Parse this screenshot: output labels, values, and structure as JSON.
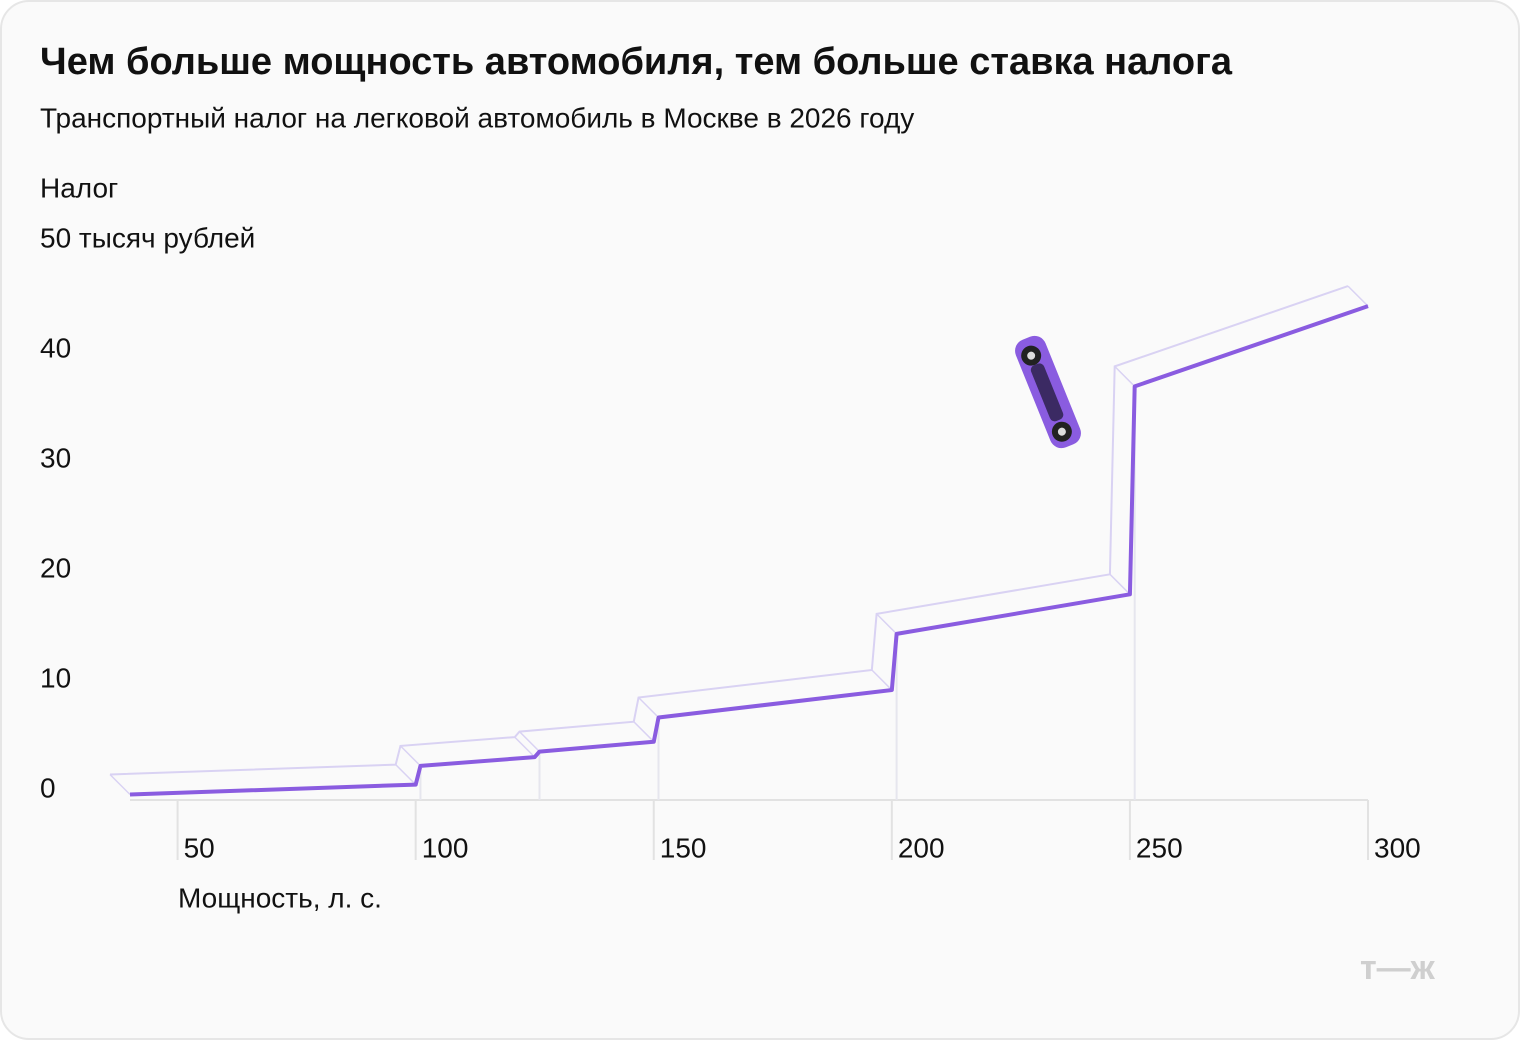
{
  "chart_data": {
    "type": "line",
    "title": "Чем больше мощность автомобиля, тем больше ставка налога",
    "subtitle": "Транспортный налог на легковой автомобиль в Москве в 2026 году",
    "y_label": "Налог",
    "y_unit": "50 тысяч рублей",
    "x_label": "Мощность, л. с.",
    "logo": "т—ж",
    "x": [
      40,
      100,
      101,
      125,
      126,
      150,
      151,
      200,
      201,
      250,
      251,
      300
    ],
    "series": [
      {
        "color": "#8a5ce0",
        "values": [
          0.5,
          1.4,
          3.1,
          3.9,
          4.4,
          5.3,
          7.5,
          10,
          15.1,
          18.7,
          37.6,
          44.9
        ]
      }
    ],
    "xlim": [
      40,
      300
    ],
    "xticks": [
      50,
      100,
      150,
      200,
      250,
      300
    ],
    "ylim": [
      0,
      45
    ],
    "yticks": [
      0,
      10,
      20,
      30,
      40
    ]
  }
}
